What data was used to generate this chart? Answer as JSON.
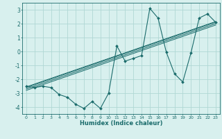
{
  "xlabel": "Humidex (Indice chaleur)",
  "bg_color": "#d8f0ee",
  "line_color": "#1a6b6b",
  "grid_color": "#b0d8d4",
  "x_data": [
    0,
    1,
    2,
    3,
    4,
    5,
    6,
    7,
    8,
    9,
    10,
    11,
    12,
    13,
    14,
    15,
    16,
    17,
    18,
    19,
    20,
    21,
    22,
    23
  ],
  "y_data": [
    -2.5,
    -2.6,
    -2.5,
    -2.6,
    -3.1,
    -3.3,
    -3.8,
    -4.1,
    -3.6,
    -4.1,
    -3.0,
    0.4,
    -0.7,
    -0.5,
    -0.3,
    3.1,
    2.4,
    -0.05,
    -1.6,
    -2.2,
    -0.1,
    2.4,
    2.7,
    2.1
  ],
  "reg_lines": [
    {
      "x0": 0,
      "y0": -2.55,
      "x1": 23,
      "y1": 2.15
    },
    {
      "x0": 0,
      "y0": -2.6,
      "x1": 23,
      "y1": 2.1
    },
    {
      "x0": 0,
      "y0": -2.7,
      "x1": 23,
      "y1": 2.0
    },
    {
      "x0": 0,
      "y0": -2.8,
      "x1": 23,
      "y1": 1.9
    }
  ],
  "ylim": [
    -4.5,
    3.5
  ],
  "xlim": [
    -0.5,
    23.5
  ],
  "yticks": [
    -4,
    -3,
    -2,
    -1,
    0,
    1,
    2,
    3
  ],
  "xticks": [
    0,
    1,
    2,
    3,
    4,
    5,
    6,
    7,
    8,
    9,
    10,
    11,
    12,
    13,
    14,
    15,
    16,
    17,
    18,
    19,
    20,
    21,
    22,
    23
  ],
  "xtick_labels": [
    "0",
    "1",
    "2",
    "3",
    "4",
    "5",
    "6",
    "7",
    "8",
    "9",
    "10",
    "11",
    "12",
    "13",
    "14",
    "15",
    "16",
    "17",
    "18",
    "19",
    "20",
    "21",
    "22",
    "23"
  ]
}
